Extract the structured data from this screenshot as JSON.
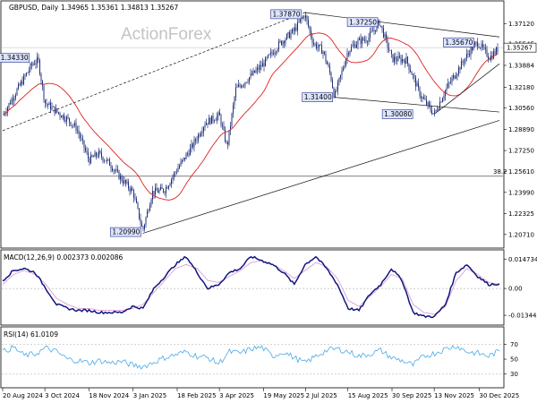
{
  "header": {
    "title": "GBPUSD, Daily",
    "ohlc": "1.34965 1.35361 1.34813 1.35267"
  },
  "watermark": "ActionForex",
  "colors": {
    "candle": "#1f2f7a",
    "ma": "#e02020",
    "trendline": "#111111",
    "hline": "#555555",
    "macd": "#11157e",
    "signal": "#d7a0d7",
    "rsi": "#4aa8e6",
    "badge_fill": "#dde4ff",
    "badge_stroke": "#22308a"
  },
  "chart_data": [
    {
      "type": "candlestick",
      "title": "GBPUSD, Daily",
      "ylim": [
        1.2,
        1.38
      ],
      "yticks": [
        "1.37120",
        "1.35545",
        "1.33884",
        "1.32180",
        "1.30560",
        "1.28890",
        "1.27250",
        "1.25610",
        "1.23990",
        "1.22325",
        "1.20710"
      ],
      "xticks": [
        "20 Aug 2024",
        "3 Oct 2024",
        "18 Nov 2024",
        "3 Jan 2025",
        "18 Feb 2025",
        "3 Apr 2025",
        "19 May 2025",
        "2 Jul 2025",
        "15 Aug 2025",
        "30 Sep 2025",
        "13 Nov 2025",
        "30 Dec 2025"
      ],
      "close_points": [
        [
          "20 Aug 2024",
          1.3
        ],
        [
          "2 Sep 2024",
          1.317
        ],
        [
          "20 Sep 2024",
          1.34
        ],
        [
          "26 Sep 2024",
          1.343
        ],
        [
          "3 Oct 2024",
          1.31
        ],
        [
          "15 Oct 2024",
          1.303
        ],
        [
          "28 Oct 2024",
          1.296
        ],
        [
          "5 Nov 2024",
          1.29
        ],
        [
          "18 Nov 2024",
          1.265
        ],
        [
          "28 Nov 2024",
          1.27
        ],
        [
          "10 Dec 2024",
          1.262
        ],
        [
          "20 Dec 2024",
          1.252
        ],
        [
          "3 Jan 2025",
          1.24
        ],
        [
          "13 Jan 2025",
          1.21
        ],
        [
          "23 Jan 2025",
          1.24
        ],
        [
          "5 Feb 2025",
          1.242
        ],
        [
          "18 Feb 2025",
          1.258
        ],
        [
          "5 Mar 2025",
          1.275
        ],
        [
          "19 Mar 2025",
          1.294
        ],
        [
          "3 Apr 2025",
          1.3
        ],
        [
          "11 Apr 2025",
          1.275
        ],
        [
          "20 Apr 2025",
          1.32
        ],
        [
          "5 May 2025",
          1.33
        ],
        [
          "19 May 2025",
          1.34
        ],
        [
          "5 Jun 2025",
          1.356
        ],
        [
          "20 Jun 2025",
          1.366
        ],
        [
          "1 Jul 2025",
          1.3787
        ],
        [
          "10 Jul 2025",
          1.356
        ],
        [
          "20 Jul 2025",
          1.35
        ],
        [
          "28 Jul 2025",
          1.331
        ],
        [
          "1 Aug 2025",
          1.314
        ],
        [
          "15 Aug 2025",
          1.35
        ],
        [
          "25 Aug 2025",
          1.357
        ],
        [
          "5 Sep 2025",
          1.36
        ],
        [
          "17 Sep 2025",
          1.3725
        ],
        [
          "30 Sep 2025",
          1.344
        ],
        [
          "15 Oct 2025",
          1.343
        ],
        [
          "30 Oct 2025",
          1.315
        ],
        [
          "13 Nov 2025",
          1.3008
        ],
        [
          "25 Nov 2025",
          1.32
        ],
        [
          "10 Dec 2025",
          1.338
        ],
        [
          "20 Dec 2025",
          1.35
        ],
        [
          "28 Dec 2025",
          1.3567
        ],
        [
          "10 Jan 2026",
          1.345
        ],
        [
          "20 Jan 2026",
          1.3527
        ]
      ],
      "last_price": "1.35267",
      "fib_label": "38.2",
      "fib_level": 1.2525,
      "annotations": [
        "1.34330",
        "1.37870",
        "1.37250",
        "1.31400",
        "1.30080",
        "1.35670",
        "1.20990"
      ]
    },
    {
      "type": "line",
      "title": "MACD(12,26,9) 0.002373 0.002086",
      "yticks": [
        "0.014734",
        "0.00",
        "-0.013442"
      ],
      "ylim": [
        -0.017,
        0.018
      ],
      "macd": [
        0.004,
        0.009,
        0.01,
        0.008,
        0.0,
        -0.008,
        -0.01,
        -0.011,
        -0.011,
        -0.012,
        -0.012,
        -0.012,
        -0.009,
        -0.01,
        0.0,
        0.006,
        0.012,
        0.016,
        0.008,
        0.0,
        0.002,
        0.008,
        0.01,
        0.016,
        0.014,
        0.012,
        0.008,
        0.002,
        0.012,
        0.016,
        0.01,
        0.002,
        -0.01,
        -0.011,
        -0.003,
        0.002,
        0.01,
        0.004,
        -0.012,
        -0.014,
        -0.014,
        -0.008,
        0.008,
        0.012,
        0.006,
        0.002,
        0.0024
      ],
      "signal": [
        0.002,
        0.007,
        0.009,
        0.007,
        0.002,
        -0.005,
        -0.008,
        -0.01,
        -0.01,
        -0.011,
        -0.011,
        -0.011,
        -0.01,
        -0.008,
        -0.002,
        0.004,
        0.01,
        0.012,
        0.01,
        0.004,
        0.003,
        0.006,
        0.009,
        0.013,
        0.014,
        0.012,
        0.009,
        0.005,
        0.009,
        0.013,
        0.011,
        0.005,
        -0.006,
        -0.009,
        -0.004,
        0.001,
        0.007,
        0.005,
        -0.008,
        -0.012,
        -0.013,
        -0.009,
        0.004,
        0.01,
        0.007,
        0.003,
        0.0021
      ]
    },
    {
      "type": "line",
      "title": "RSI(14) 61.0109",
      "yticks": [
        "70",
        "50",
        "30"
      ],
      "ylim": [
        15,
        90
      ],
      "values": [
        60,
        66,
        55,
        57,
        65,
        60,
        50,
        48,
        45,
        48,
        45,
        47,
        42,
        40,
        46,
        52,
        56,
        60,
        54,
        52,
        44,
        60,
        58,
        64,
        66,
        54,
        60,
        52,
        45,
        54,
        62,
        64,
        60,
        54,
        57,
        62,
        52,
        48,
        42,
        54,
        58,
        64,
        68,
        60,
        58,
        54,
        61
      ]
    }
  ]
}
